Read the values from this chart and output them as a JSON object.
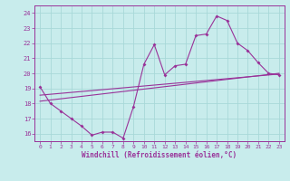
{
  "xlabel": "Windchill (Refroidissement éolien,°C)",
  "xlim": [
    -0.5,
    23.5
  ],
  "ylim": [
    15.5,
    24.5
  ],
  "xticks": [
    0,
    1,
    2,
    3,
    4,
    5,
    6,
    7,
    8,
    9,
    10,
    11,
    12,
    13,
    14,
    15,
    16,
    17,
    18,
    19,
    20,
    21,
    22,
    23
  ],
  "yticks": [
    16,
    17,
    18,
    19,
    20,
    21,
    22,
    23,
    24
  ],
  "bg_color": "#c8ecec",
  "grid_color": "#a8d8d8",
  "line_color": "#993399",
  "series1_x": [
    0,
    1,
    2,
    3,
    4,
    5,
    6,
    7,
    8,
    9,
    10,
    11,
    12,
    13,
    14,
    15,
    16,
    17,
    18,
    19,
    20,
    21,
    22,
    23
  ],
  "series1_y": [
    19.1,
    18.0,
    17.5,
    17.0,
    16.5,
    15.9,
    16.1,
    16.1,
    15.7,
    17.8,
    20.6,
    21.9,
    19.9,
    20.5,
    20.6,
    22.5,
    22.6,
    23.8,
    23.5,
    22.0,
    21.5,
    20.7,
    20.0,
    19.9
  ],
  "series2_x": [
    0,
    23
  ],
  "series2_y": [
    18.15,
    20.0
  ],
  "series3_x": [
    0,
    23
  ],
  "series3_y": [
    18.55,
    19.95
  ]
}
